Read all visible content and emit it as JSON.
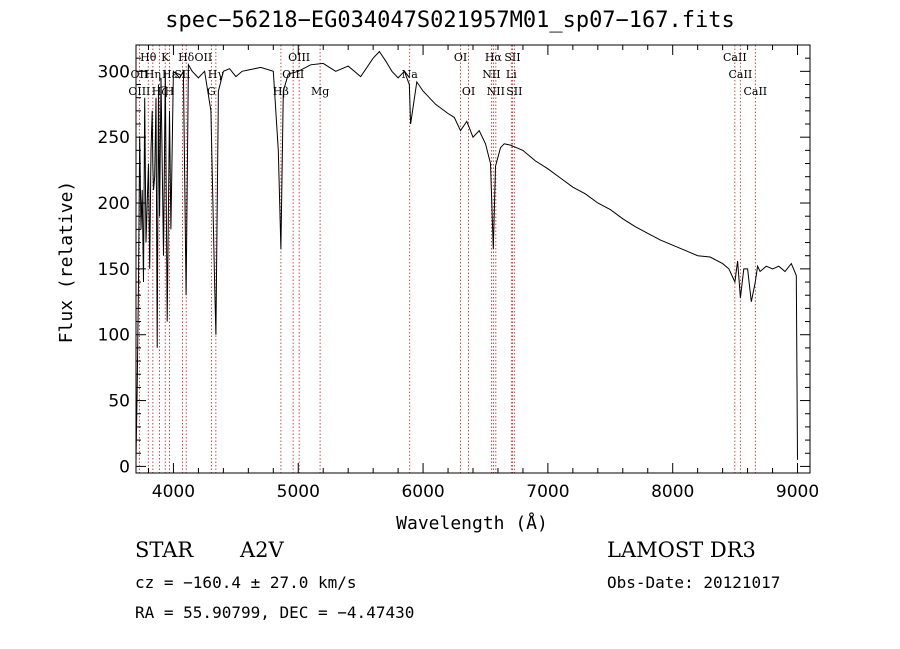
{
  "chart_data": {
    "type": "line",
    "title": "spec−56218−EG034047S021957M01_sp07−167.fits",
    "xlabel": "Wavelength (Å)",
    "ylabel": "Flux (relative)",
    "xlim": [
      3700,
      9100
    ],
    "ylim": [
      -5,
      320
    ],
    "xticks": [
      4000,
      5000,
      6000,
      7000,
      8000,
      9000
    ],
    "yticks": [
      0,
      50,
      100,
      150,
      200,
      250,
      300
    ],
    "series": [
      {
        "name": "spectrum",
        "x": [
          3700,
          3710,
          3720,
          3730,
          3740,
          3750,
          3760,
          3770,
          3780,
          3790,
          3800,
          3810,
          3820,
          3830,
          3835,
          3840,
          3850,
          3860,
          3870,
          3880,
          3889,
          3900,
          3920,
          3935,
          3950,
          3968,
          3980,
          4000,
          4050,
          4080,
          4101,
          4120,
          4150,
          4200,
          4250,
          4300,
          4330,
          4340,
          4360,
          4400,
          4450,
          4500,
          4550,
          4600,
          4700,
          4800,
          4840,
          4861,
          4880,
          4920,
          5000,
          5100,
          5200,
          5300,
          5400,
          5500,
          5600,
          5650,
          5700,
          5750,
          5800,
          5850,
          5890,
          5900,
          5950,
          6000,
          6100,
          6200,
          6250,
          6300,
          6350,
          6400,
          6450,
          6500,
          6540,
          6563,
          6580,
          6620,
          6650,
          6700,
          6800,
          6900,
          7000,
          7100,
          7200,
          7300,
          7400,
          7500,
          7600,
          7700,
          7800,
          7900,
          8000,
          8100,
          8200,
          8300,
          8400,
          8450,
          8498,
          8520,
          8542,
          8570,
          8600,
          8630,
          8662,
          8680,
          8700,
          8750,
          8800,
          8850,
          8900,
          8950,
          8990,
          9000
        ],
        "y": [
          5,
          60,
          140,
          250,
          180,
          210,
          140,
          280,
          170,
          200,
          230,
          150,
          240,
          270,
          230,
          210,
          220,
          280,
          90,
          290,
          190,
          295,
          160,
          300,
          110,
          270,
          180,
          300,
          295,
          300,
          130,
          305,
          300,
          295,
          300,
          270,
          140,
          100,
          285,
          300,
          302,
          296,
          300,
          301,
          303,
          300,
          240,
          165,
          285,
          298,
          300,
          305,
          306,
          300,
          304,
          296,
          310,
          315,
          308,
          300,
          295,
          300,
          290,
          260,
          292,
          285,
          275,
          268,
          265,
          255,
          262,
          250,
          255,
          245,
          230,
          165,
          228,
          242,
          245,
          244,
          240,
          232,
          226,
          219,
          212,
          207,
          200,
          195,
          188,
          182,
          177,
          172,
          168,
          164,
          160,
          159,
          154,
          150,
          140,
          156,
          128,
          150,
          150,
          125,
          140,
          152,
          148,
          152,
          150,
          152,
          148,
          154,
          145,
          5
        ]
      }
    ],
    "annotations": [
      {
        "label": "Hθ",
        "x": 3798,
        "row": 1
      },
      {
        "label": "K",
        "x": 3934,
        "row": 1
      },
      {
        "label": "Hδ",
        "x": 4102,
        "row": 1
      },
      {
        "label": "OII",
        "x": 4240,
        "row": 1
      },
      {
        "label": "OIII",
        "x": 5007,
        "row": 1
      },
      {
        "label": "OI",
        "x": 6300,
        "row": 1
      },
      {
        "label": "Hα",
        "x": 6563,
        "row": 1
      },
      {
        "label": "SII",
        "x": 6716,
        "row": 1
      },
      {
        "label": "CaII",
        "x": 8498,
        "row": 1
      },
      {
        "label": "OII",
        "x": 3727,
        "row": 2
      },
      {
        "label": "Hη",
        "x": 3835,
        "row": 2
      },
      {
        "label": "Hε",
        "x": 3970,
        "row": 2
      },
      {
        "label": "SII",
        "x": 4072,
        "row": 2
      },
      {
        "label": "Hγ",
        "x": 4340,
        "row": 2
      },
      {
        "label": "OIII",
        "x": 4959,
        "row": 2
      },
      {
        "label": "Na",
        "x": 5893,
        "row": 2
      },
      {
        "label": "NII",
        "x": 6548,
        "row": 2
      },
      {
        "label": "Li",
        "x": 6707,
        "row": 2
      },
      {
        "label": "CaII",
        "x": 8542,
        "row": 2
      },
      {
        "label": "OIII",
        "x": 3727,
        "row": 3
      },
      {
        "label": "Hζ",
        "x": 3889,
        "row": 3
      },
      {
        "label": "H",
        "x": 3968,
        "row": 3
      },
      {
        "label": "G",
        "x": 4304,
        "row": 3
      },
      {
        "label": "Hβ",
        "x": 4861,
        "row": 3
      },
      {
        "label": "Mg",
        "x": 5175,
        "row": 3
      },
      {
        "label": "OI",
        "x": 6364,
        "row": 3
      },
      {
        "label": "NII",
        "x": 6583,
        "row": 3
      },
      {
        "label": "SII",
        "x": 6731,
        "row": 3
      },
      {
        "label": "CaII",
        "x": 8662,
        "row": 3
      }
    ],
    "line_markers": [
      3727,
      3798,
      3835,
      3889,
      3934,
      3968,
      4072,
      4102,
      4304,
      4340,
      4861,
      4959,
      5007,
      5175,
      5893,
      6300,
      6364,
      6548,
      6563,
      6583,
      6707,
      6716,
      6731,
      8498,
      8542,
      8662
    ],
    "colors": {
      "spectrum": "#000000",
      "markers": "#b22222",
      "axes": "#000000"
    }
  },
  "footer": {
    "object_class": "STAR",
    "subclass": "A2V",
    "survey": "LAMOST DR3",
    "cz": "cz = −160.4 ± 27.0 km/s",
    "obs_date": "Obs-Date: 20121017",
    "coords": "RA =  55.90799, DEC =  −4.47430"
  }
}
